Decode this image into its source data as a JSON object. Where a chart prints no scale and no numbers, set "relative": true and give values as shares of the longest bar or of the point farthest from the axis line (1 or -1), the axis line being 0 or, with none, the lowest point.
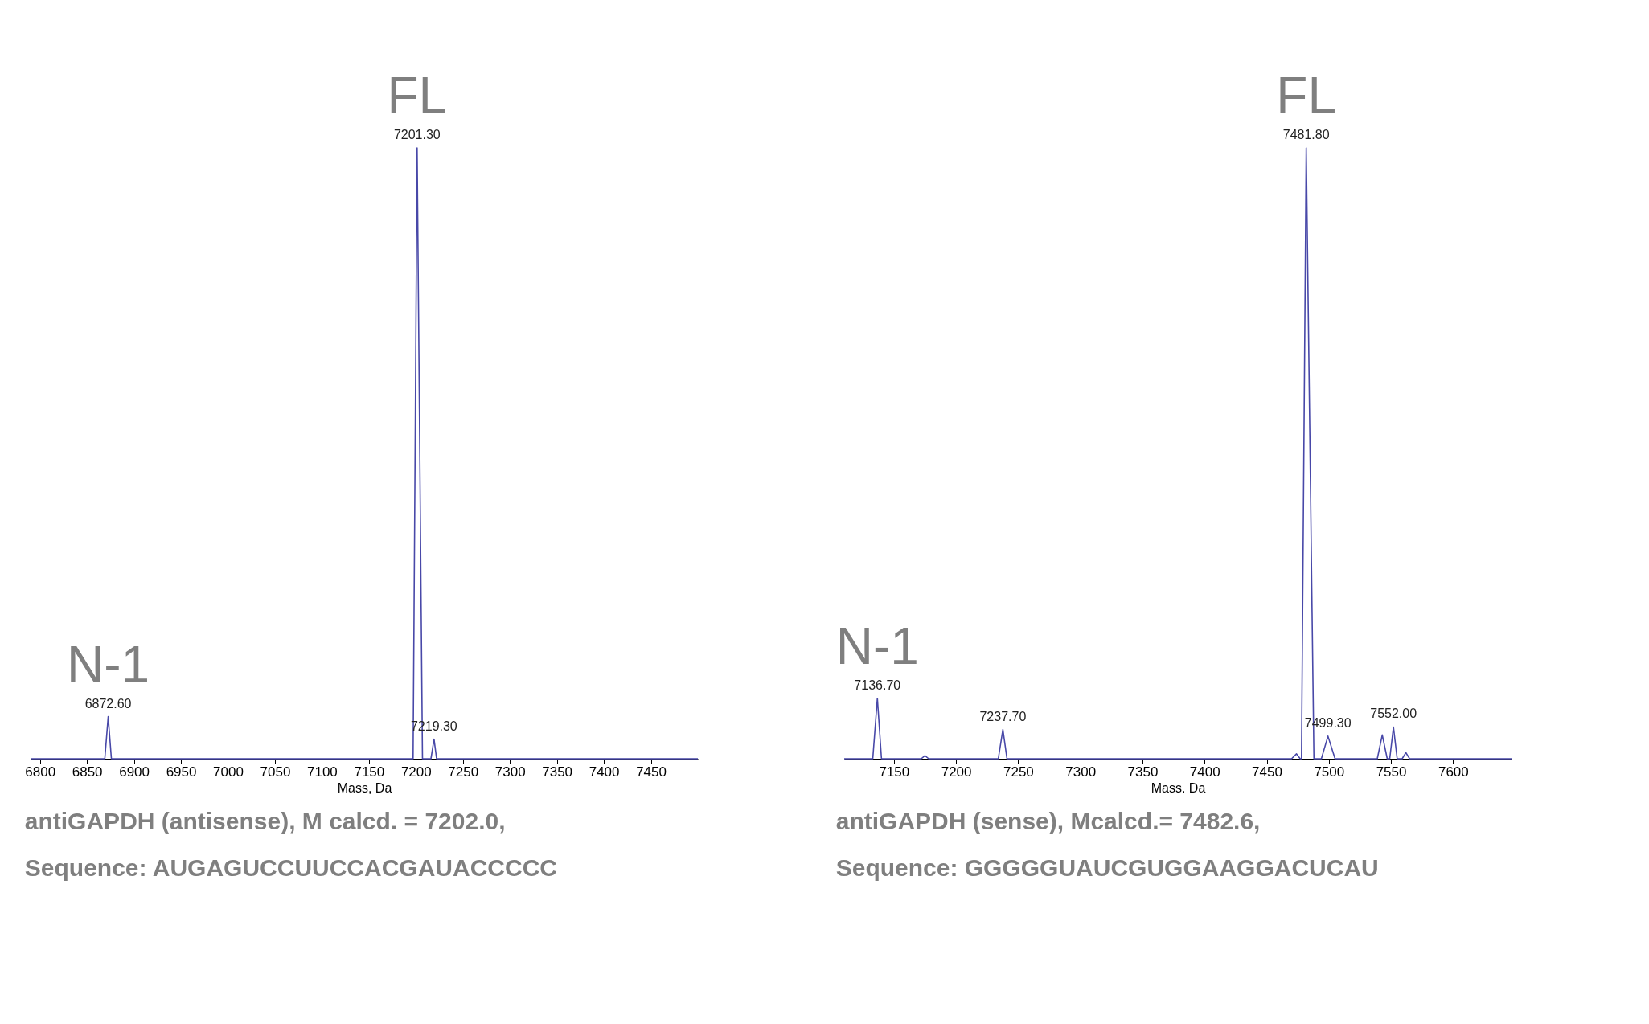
{
  "chart_data": [
    {
      "type": "line",
      "relative": true,
      "xlabel": "Mass, Da",
      "xlim": [
        6790,
        7500
      ],
      "xticks": [
        6800,
        6850,
        6900,
        6950,
        7000,
        7050,
        7100,
        7150,
        7200,
        7250,
        7300,
        7350,
        7400,
        7450
      ],
      "x": [
        6790,
        6869,
        6872.6,
        6876,
        7197,
        7201.3,
        7207,
        7216,
        7219.3,
        7222,
        7500
      ],
      "series": [
        {
          "color": "#4848a8",
          "values": [
            0,
            0,
            0.069,
            0,
            0,
            1,
            0,
            0,
            0.032,
            0,
            0
          ]
        }
      ],
      "annotations": [
        {
          "text": "6872.60",
          "x": 6872.6,
          "y": 0.069
        },
        {
          "text": "7201.30",
          "x": 7201.3,
          "y": 1
        },
        {
          "text": "7219.30",
          "x": 7219.3,
          "y": 0.032
        },
        {
          "text": "FL",
          "x": 7201.3,
          "y": 1
        },
        {
          "text": "N-1",
          "x": 6872.6,
          "y": 0.069
        },
        "antiGAPDH (antisense), M calcd. = 7202.0,",
        "Sequence: AUGAGUCCUUCCACGAUACCCCC"
      ]
    },
    {
      "type": "line",
      "relative": true,
      "xlabel": "Mass. Da",
      "xlim": [
        7110,
        7647
      ],
      "xticks": [
        7150,
        7200,
        7250,
        7300,
        7350,
        7400,
        7450,
        7500,
        7550,
        7600
      ],
      "x": [
        7110,
        7133,
        7136.7,
        7140,
        7172,
        7175,
        7178,
        7234,
        7237.7,
        7241,
        7470,
        7474,
        7477,
        7478,
        7481.8,
        7488,
        7494,
        7499.3,
        7505,
        7539,
        7543,
        7547,
        7549,
        7552,
        7555,
        7559,
        7562,
        7565,
        7647
      ],
      "series": [
        {
          "color": "#4848a8",
          "values": [
            0,
            0,
            0.099,
            0,
            0,
            0.005,
            0,
            0,
            0.048,
            0,
            0,
            0.008,
            0,
            0,
            1,
            0,
            0,
            0.037,
            0,
            0,
            0.039,
            0,
            0,
            0.052,
            0,
            0,
            0.01,
            0,
            0
          ]
        }
      ],
      "annotations": [
        {
          "text": "7136.70",
          "x": 7136.7,
          "y": 0.099
        },
        {
          "text": "7237.70",
          "x": 7237.7,
          "y": 0.048
        },
        {
          "text": "7481.80",
          "x": 7481.8,
          "y": 1
        },
        {
          "text": "7499.30",
          "x": 7499.3,
          "y": 0.037
        },
        {
          "text": "7552.00",
          "x": 7552.0,
          "y": 0.052
        },
        {
          "text": "FL",
          "x": 7481.8,
          "y": 1
        },
        {
          "text": "N-1",
          "x": 7136.7,
          "y": 0.099
        },
        "antiGAPDH (sense), Mcalcd.= 7482.6,",
        "Sequence:  GGGGGUAUCGUGGAAGGACUCAU"
      ]
    }
  ]
}
